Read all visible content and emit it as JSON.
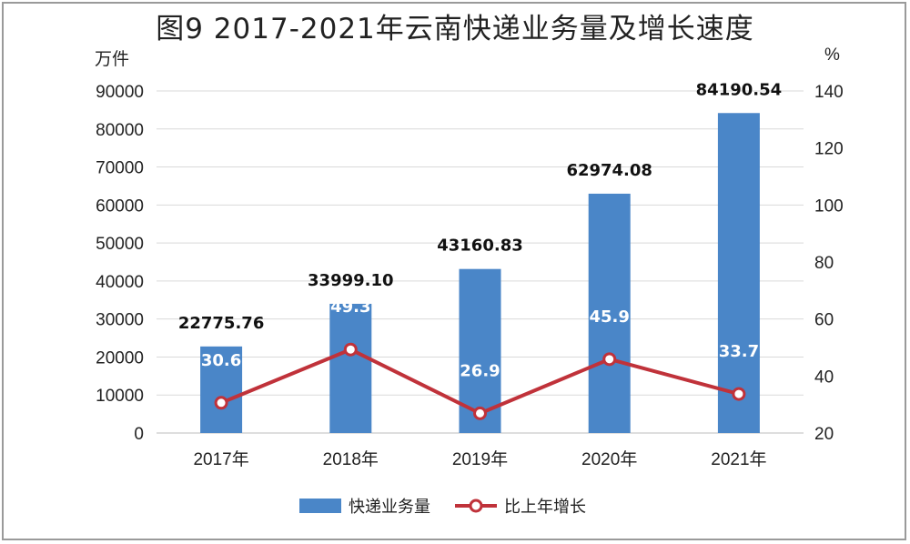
{
  "chart_data": {
    "type": "bar",
    "title": "图9 2017-2021年云南快递业务量及增长速度",
    "categories": [
      "2017年",
      "2018年",
      "2019年",
      "2020年",
      "2021年"
    ],
    "series": [
      {
        "name": "快递业务量",
        "type": "bar",
        "axis": "left",
        "values": [
          22775.76,
          33999.1,
          43160.83,
          62974.08,
          84190.54
        ],
        "labels": [
          "22775.76",
          "33999.10",
          "43160.83",
          "62974.08",
          "84190.54"
        ],
        "color": "#4a86c8"
      },
      {
        "name": "比上年增长",
        "type": "line",
        "axis": "right",
        "values": [
          30.6,
          49.3,
          26.9,
          45.9,
          33.7
        ],
        "labels": [
          "30.6",
          "49.3",
          "26.9",
          "45.9",
          "33.7"
        ],
        "color": "#c0323a"
      }
    ],
    "ylabel": "万件",
    "y2label": "%",
    "ylim": [
      0,
      90000
    ],
    "y2lim": [
      20,
      140
    ],
    "yticks": [
      "0",
      "10000",
      "20000",
      "30000",
      "40000",
      "50000",
      "60000",
      "70000",
      "80000",
      "90000"
    ],
    "y2ticks": [
      "20",
      "40",
      "60",
      "80",
      "100",
      "120",
      "140"
    ],
    "grid": true,
    "legend_position": "bottom"
  }
}
